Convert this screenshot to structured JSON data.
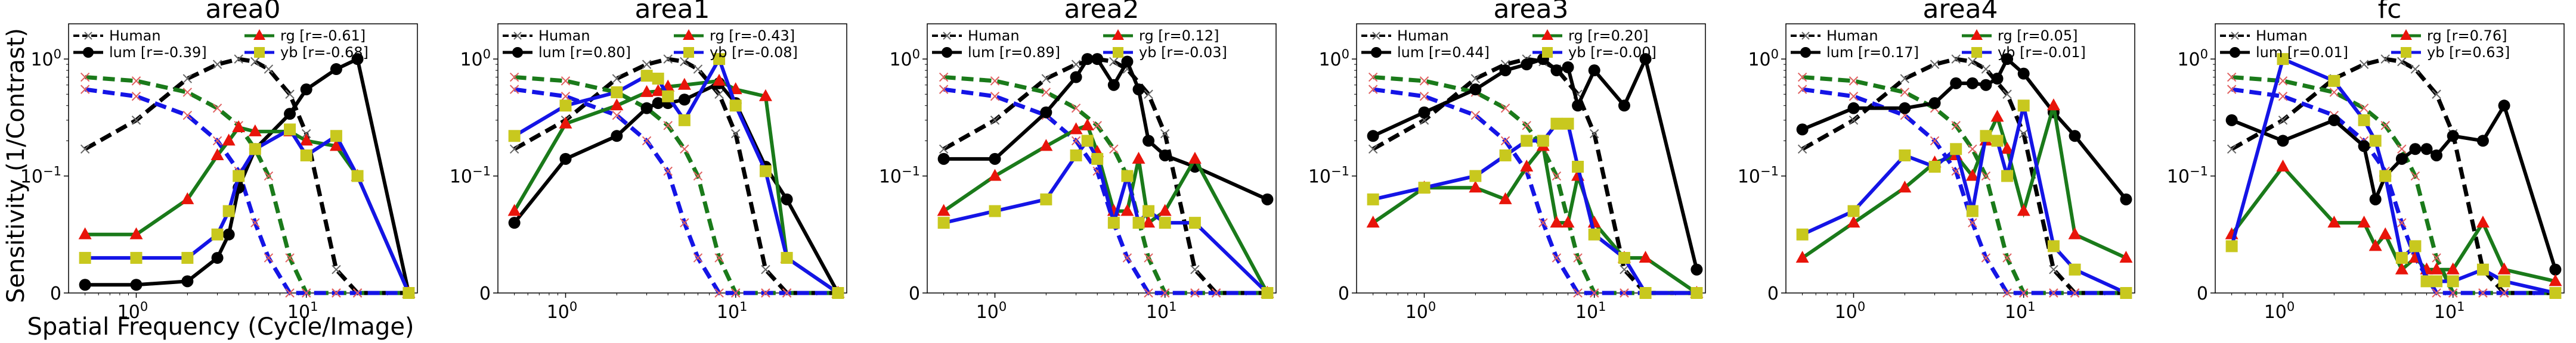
{
  "figure": {
    "ylabel": "Sensitivity (1/Contrast)",
    "xlabel": "Spatial Frequency (Cycle/Image)"
  },
  "colors": {
    "human": "#808080",
    "lum": "#000000",
    "rg": "#1a7a1a",
    "yb": "#1414e6",
    "rg_marker": "#e8140a",
    "yb_marker": "#c8c81e"
  },
  "legend_labels": {
    "human": "Human",
    "lum": "lum",
    "rg": "rg",
    "yb": "yb"
  },
  "chart_data": [
    {
      "type": "line",
      "title": "area0",
      "xscale": "log",
      "yscale": "symlog",
      "xlim": [
        0.4,
        45
      ],
      "ylim": [
        0,
        2.0
      ],
      "xticks": [
        "10^0",
        "10^1"
      ],
      "yticks": [
        "0",
        "10^-1",
        "10^0"
      ],
      "legend": {
        "lum_r": "[r=-0.39]",
        "rg_r": "[r=-0.61]",
        "yb_r": "[r=-0.68]"
      },
      "x": [
        0.5,
        1,
        2,
        3,
        3.5,
        4,
        5,
        8,
        10,
        15,
        20,
        40
      ],
      "series": [
        {
          "name": "lum",
          "values": [
            0.007,
            0.007,
            0.01,
            0.03,
            0.05,
            0.09,
            0.17,
            0.34,
            0.55,
            0.82,
            1.0,
            0.0
          ]
        },
        {
          "name": "rg",
          "values": [
            0.05,
            0.05,
            0.08,
            0.15,
            0.2,
            0.26,
            0.24,
            0.24,
            0.2,
            0.18,
            0.1,
            0.0
          ]
        },
        {
          "name": "yb",
          "values": [
            0.03,
            0.03,
            0.03,
            0.05,
            0.07,
            0.1,
            0.17,
            0.25,
            0.15,
            0.22,
            0.1,
            0.0
          ]
        }
      ]
    },
    {
      "type": "line",
      "title": "area1",
      "xscale": "log",
      "yscale": "symlog",
      "xlim": [
        0.4,
        45
      ],
      "ylim": [
        0,
        2.0
      ],
      "xticks": [
        "10^0",
        "10^1"
      ],
      "yticks": [
        "0",
        "10^-1",
        "10^0"
      ],
      "legend": {
        "lum_r": "[r=0.80]",
        "rg_r": "[r=-0.43]",
        "yb_r": "[r=-0.08]"
      },
      "x": [
        0.5,
        1,
        2,
        3,
        3.5,
        4,
        5,
        8,
        10,
        15,
        20,
        40
      ],
      "series": [
        {
          "name": "lum",
          "values": [
            0.06,
            0.14,
            0.22,
            0.38,
            0.42,
            0.42,
            0.45,
            0.62,
            0.42,
            0.12,
            0.08,
            0.0
          ]
        },
        {
          "name": "rg",
          "values": [
            0.07,
            0.28,
            0.4,
            0.52,
            0.53,
            0.58,
            0.6,
            0.65,
            0.55,
            0.48,
            0.03,
            0.0
          ]
        },
        {
          "name": "yb",
          "values": [
            0.22,
            0.4,
            0.52,
            0.72,
            0.68,
            0.48,
            0.3,
            1.0,
            0.4,
            0.11,
            0.03,
            0.0
          ]
        }
      ]
    },
    {
      "type": "line",
      "title": "area2",
      "xscale": "log",
      "yscale": "symlog",
      "xlim": [
        0.4,
        45
      ],
      "ylim": [
        0,
        2.0
      ],
      "xticks": [
        "10^0",
        "10^1"
      ],
      "yticks": [
        "0",
        "10^-1",
        "10^0"
      ],
      "legend": {
        "lum_r": "[r=0.89]",
        "rg_r": "[r=0.12]",
        "yb_r": "[r=-0.03]"
      },
      "x": [
        0.5,
        1,
        2,
        3,
        3.5,
        4,
        5,
        6,
        7,
        8,
        10,
        15,
        40
      ],
      "series": [
        {
          "name": "lum",
          "values": [
            0.14,
            0.14,
            0.35,
            0.7,
            1.0,
            1.0,
            0.6,
            0.95,
            0.55,
            0.2,
            0.15,
            0.12,
            0.08
          ]
        },
        {
          "name": "rg",
          "values": [
            0.07,
            0.1,
            0.18,
            0.25,
            0.27,
            0.16,
            0.07,
            0.07,
            0.14,
            0.06,
            0.07,
            0.14,
            0.0
          ]
        },
        {
          "name": "yb",
          "values": [
            0.06,
            0.07,
            0.08,
            0.15,
            0.2,
            0.14,
            0.06,
            0.1,
            0.06,
            0.07,
            0.06,
            0.06,
            0.0
          ]
        }
      ]
    },
    {
      "type": "line",
      "title": "area3",
      "xscale": "log",
      "yscale": "symlog",
      "xlim": [
        0.4,
        45
      ],
      "ylim": [
        0,
        2.0
      ],
      "xticks": [
        "10^0",
        "10^1"
      ],
      "yticks": [
        "0",
        "10^-1",
        "10^0"
      ],
      "legend": {
        "lum_r": "[r=0.44]",
        "rg_r": "[r=0.20]",
        "yb_r": "[r=-0.00]"
      },
      "x": [
        0.5,
        1,
        2,
        3,
        4,
        5,
        6,
        7,
        8,
        10,
        15,
        20,
        40
      ],
      "series": [
        {
          "name": "lum",
          "values": [
            0.22,
            0.35,
            0.55,
            0.8,
            0.9,
            1.0,
            0.8,
            0.85,
            0.4,
            0.8,
            0.4,
            1.0,
            0.02
          ]
        },
        {
          "name": "rg",
          "values": [
            0.06,
            0.09,
            0.09,
            0.08,
            0.12,
            0.18,
            0.06,
            0.06,
            0.1,
            0.06,
            0.03,
            0.03,
            0.0
          ]
        },
        {
          "name": "yb",
          "values": [
            0.08,
            0.09,
            0.1,
            0.15,
            0.2,
            0.2,
            0.28,
            0.28,
            0.12,
            0.05,
            0.03,
            0.0,
            0.0
          ]
        }
      ]
    },
    {
      "type": "line",
      "title": "area4",
      "xscale": "log",
      "yscale": "symlog",
      "xlim": [
        0.4,
        45
      ],
      "ylim": [
        0,
        2.0
      ],
      "xticks": [
        "10^0",
        "10^1"
      ],
      "yticks": [
        "0",
        "10^-1",
        "10^0"
      ],
      "legend": {
        "lum_r": "[r=0.17]",
        "rg_r": "[r=0.05]",
        "yb_r": "[r=-0.01]"
      },
      "x": [
        0.5,
        1,
        2,
        3,
        4,
        5,
        6,
        7,
        8,
        10,
        15,
        20,
        40
      ],
      "series": [
        {
          "name": "lum",
          "values": [
            0.25,
            0.38,
            0.38,
            0.42,
            0.62,
            0.62,
            0.6,
            0.68,
            1.0,
            0.75,
            0.35,
            0.22,
            0.08
          ]
        },
        {
          "name": "rg",
          "values": [
            0.03,
            0.06,
            0.09,
            0.13,
            0.15,
            0.1,
            0.2,
            0.32,
            0.17,
            0.07,
            0.4,
            0.05,
            0.03
          ]
        },
        {
          "name": "yb",
          "values": [
            0.05,
            0.07,
            0.15,
            0.12,
            0.17,
            0.07,
            0.22,
            0.2,
            0.1,
            0.4,
            0.04,
            0.02,
            0.0
          ]
        }
      ]
    },
    {
      "type": "line",
      "title": "fc",
      "xscale": "log",
      "yscale": "symlog",
      "xlim": [
        0.4,
        45
      ],
      "ylim": [
        0,
        2.0
      ],
      "xticks": [
        "10^0",
        "10^1"
      ],
      "yticks": [
        "0",
        "10^-1",
        "10^0"
      ],
      "legend": {
        "lum_r": "[r=0.01]",
        "rg_r": "[r=0.76]",
        "yb_r": "[r=0.63]"
      },
      "x": [
        0.5,
        1,
        2,
        3,
        3.5,
        4,
        5,
        6,
        7,
        8,
        10,
        15,
        20,
        40
      ],
      "series": [
        {
          "name": "lum",
          "values": [
            0.3,
            0.2,
            0.3,
            0.18,
            0.08,
            0.1,
            0.14,
            0.17,
            0.17,
            0.15,
            0.22,
            0.2,
            0.4,
            0.02
          ]
        },
        {
          "name": "rg",
          "values": [
            0.05,
            0.12,
            0.06,
            0.06,
            0.04,
            0.05,
            0.02,
            0.03,
            0.02,
            0.02,
            0.02,
            0.06,
            0.02,
            0.01
          ]
        },
        {
          "name": "yb",
          "values": [
            0.04,
            1.0,
            0.65,
            0.3,
            0.2,
            0.1,
            0.03,
            0.04,
            0.01,
            0.01,
            0.01,
            0.02,
            0.01,
            0.0
          ]
        }
      ]
    }
  ],
  "human_reference": {
    "name": "Human",
    "x": [
      0.5,
      1,
      2,
      3,
      4,
      5,
      6,
      8,
      10,
      15,
      20,
      40
    ],
    "lum": [
      0.17,
      0.3,
      0.68,
      0.9,
      1.0,
      0.95,
      0.82,
      0.5,
      0.23,
      0.02,
      0.0,
      0.0
    ],
    "rg": [
      0.7,
      0.65,
      0.52,
      0.38,
      0.27,
      0.17,
      0.1,
      0.03,
      0.0,
      0.0,
      0.0,
      0.0
    ],
    "yb": [
      0.55,
      0.48,
      0.33,
      0.2,
      0.11,
      0.06,
      0.03,
      0.0,
      0.0,
      0.0,
      0.0,
      0.0
    ]
  }
}
